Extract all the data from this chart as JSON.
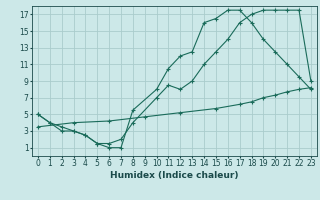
{
  "xlabel": "Humidex (Indice chaleur)",
  "bg_color": "#cce8e8",
  "grid_color": "#aacccc",
  "line_color": "#1a6b5a",
  "xlim": [
    -0.5,
    23.5
  ],
  "ylim": [
    0,
    18
  ],
  "xticks": [
    0,
    1,
    2,
    3,
    4,
    5,
    6,
    7,
    8,
    9,
    10,
    11,
    12,
    13,
    14,
    15,
    16,
    17,
    18,
    19,
    20,
    21,
    22,
    23
  ],
  "yticks": [
    1,
    3,
    5,
    7,
    9,
    11,
    13,
    15,
    17
  ],
  "line1_x": [
    0,
    1,
    2,
    3,
    4,
    5,
    6,
    7,
    8,
    10,
    11,
    12,
    13,
    14,
    15,
    16,
    17,
    18,
    19,
    20,
    21,
    22,
    23
  ],
  "line1_y": [
    5,
    4,
    3,
    3,
    2.5,
    1.5,
    1,
    1,
    5.5,
    8,
    10.5,
    12,
    12.5,
    16,
    16.5,
    17.5,
    17.5,
    16,
    14,
    12.5,
    11,
    9.5,
    8
  ],
  "line2_x": [
    0,
    1,
    2,
    3,
    4,
    5,
    6,
    7,
    8,
    10,
    11,
    12,
    13,
    14,
    15,
    16,
    17,
    18,
    19,
    20,
    21,
    22,
    23
  ],
  "line2_y": [
    5,
    4,
    3.5,
    3,
    2.5,
    1.5,
    1.5,
    2,
    4,
    7,
    8.5,
    8,
    9,
    11,
    12.5,
    14,
    16,
    17,
    17.5,
    17.5,
    17.5,
    17.5,
    9
  ],
  "line3_x": [
    0,
    3,
    6,
    9,
    12,
    15,
    17,
    18,
    19,
    20,
    21,
    22,
    23
  ],
  "line3_y": [
    3.5,
    4,
    4.2,
    4.7,
    5.2,
    5.7,
    6.2,
    6.5,
    7.0,
    7.3,
    7.7,
    8.0,
    8.2
  ]
}
